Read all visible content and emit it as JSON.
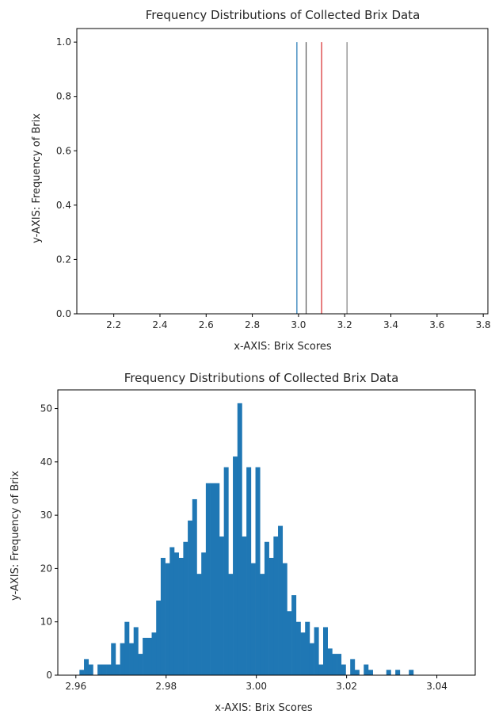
{
  "chart_data": [
    {
      "type": "bar",
      "title": "Frequency Distributions of Collected Brix Data",
      "xlabel": "x-AXIS: Brix Scores",
      "ylabel": "y-AXIS: Frequency of Brix",
      "xlim": [
        2.04,
        3.82
      ],
      "ylim": [
        0,
        1.05
      ],
      "xticks": [
        "2.2",
        "2.4",
        "2.6",
        "2.8",
        "3.0",
        "3.2",
        "3.4",
        "3.6",
        "3.8"
      ],
      "yticks": [
        "0.0",
        "0.2",
        "0.4",
        "0.6",
        "0.8",
        "1.0"
      ],
      "grid": false,
      "series": [
        {
          "x": 2.993,
          "value": 1.0,
          "color": "#1f77b4"
        },
        {
          "x": 3.033,
          "value": 1.0,
          "color": "#555555"
        },
        {
          "x": 3.1,
          "value": 1.0,
          "color": "#d62728"
        },
        {
          "x": 3.21,
          "value": 1.0,
          "color": "#7f7f7f"
        }
      ]
    },
    {
      "type": "bar",
      "title": "Frequency Distributions of Collected Brix Data",
      "xlabel": "x-AXIS: Brix Scores",
      "ylabel": "y-AXIS: Frequency of Brix",
      "xlim": [
        2.956,
        3.0485
      ],
      "ylim": [
        0,
        53.5
      ],
      "xticks": [
        "2.96",
        "2.98",
        "3.00",
        "3.02",
        "3.04"
      ],
      "yticks": [
        "0",
        "10",
        "20",
        "30",
        "40",
        "50"
      ],
      "grid": false,
      "color": "#1f77b4",
      "bin_start": 2.9608,
      "bin_width": 0.001,
      "counts": [
        1,
        3,
        2,
        0,
        2,
        2,
        2,
        6,
        2,
        6,
        10,
        6,
        9,
        4,
        7,
        7,
        8,
        14,
        22,
        21,
        24,
        23,
        22,
        25,
        29,
        33,
        19,
        23,
        36,
        36,
        36,
        26,
        39,
        19,
        41,
        51,
        26,
        39,
        21,
        39,
        19,
        25,
        22,
        26,
        28,
        21,
        12,
        15,
        10,
        8,
        10,
        6,
        9,
        2,
        9,
        5,
        4,
        4,
        2,
        0,
        3,
        1,
        0,
        2,
        1,
        0,
        0,
        0,
        1,
        0,
        1,
        0,
        0,
        1
      ]
    }
  ]
}
